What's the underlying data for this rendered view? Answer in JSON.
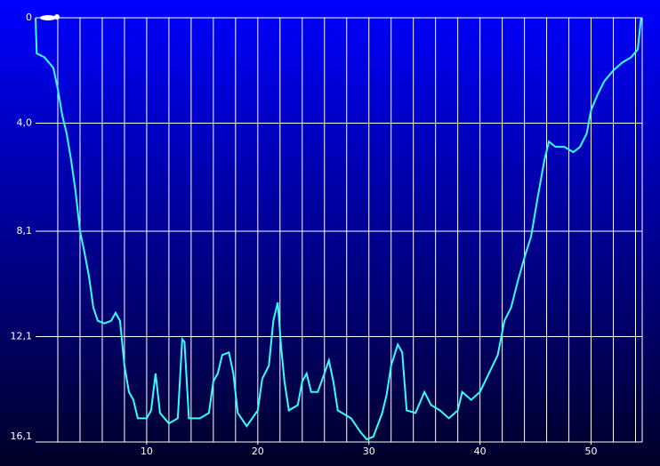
{
  "chart_data": {
    "type": "line",
    "x": [
      0,
      0.1,
      0.8,
      1.6,
      2.0,
      2.4,
      2.8,
      3.2,
      3.6,
      4.0,
      4.4,
      4.8,
      5.2,
      5.6,
      6.2,
      6.8,
      7.2,
      7.6,
      8.0,
      8.4,
      8.8,
      9.2,
      10.0,
      10.4,
      10.8,
      11.2,
      12.0,
      12.8,
      13.2,
      13.4,
      13.8,
      14.8,
      15.6,
      16.0,
      16.4,
      16.8,
      17.4,
      17.8,
      18.2,
      19.0,
      20.0,
      20.4,
      21.0,
      21.4,
      21.8,
      22.1,
      22.4,
      22.8,
      23.6,
      24.0,
      24.4,
      24.8,
      25.4,
      26.0,
      26.4,
      26.8,
      27.2,
      28.4,
      29.2,
      29.8,
      30.4,
      31.2,
      31.6,
      32.0,
      32.6,
      33.0,
      33.4,
      34.2,
      35.0,
      35.6,
      36.4,
      37.2,
      38.0,
      38.4,
      39.2,
      40.0,
      40.8,
      41.6,
      42.2,
      42.8,
      43.4,
      44.0,
      44.6,
      45.2,
      45.8,
      46.2,
      46.8,
      47.6,
      48.4,
      49.0,
      49.6,
      50.0,
      50.6,
      51.2,
      52.0,
      52.8,
      53.6,
      54.2,
      54.5
    ],
    "series": [
      {
        "color": "#33ffff",
        "values": [
          0,
          1.35,
          1.5,
          1.9,
          2.7,
          3.7,
          4.4,
          5.4,
          6.6,
          8.1,
          8.9,
          9.8,
          11.0,
          11.5,
          11.6,
          11.5,
          11.2,
          11.5,
          13.2,
          14.2,
          14.5,
          15.2,
          15.2,
          14.9,
          13.5,
          15.0,
          15.4,
          15.2,
          12.2,
          12.3,
          15.2,
          15.2,
          15.0,
          13.8,
          13.5,
          12.8,
          12.7,
          13.5,
          15.0,
          15.5,
          14.9,
          13.7,
          13.2,
          11.5,
          10.8,
          12.5,
          13.8,
          14.9,
          14.7,
          13.8,
          13.5,
          14.2,
          14.2,
          13.5,
          13.0,
          13.8,
          14.9,
          15.2,
          15.7,
          16.0,
          15.9,
          15.0,
          14.3,
          13.2,
          12.4,
          12.7,
          14.9,
          15.0,
          14.2,
          14.7,
          14.9,
          15.2,
          14.9,
          14.2,
          14.5,
          14.2,
          13.5,
          12.8,
          11.5,
          11.0,
          10.0,
          9.1,
          8.3,
          6.8,
          5.4,
          4.7,
          4.9,
          4.9,
          5.1,
          4.9,
          4.4,
          3.5,
          2.9,
          2.4,
          2.0,
          1.7,
          1.5,
          1.2,
          0
        ]
      }
    ],
    "xlim": [
      0,
      54.6
    ],
    "xticks": [
      10,
      20,
      30,
      40,
      50
    ],
    "xgrid": [
      2,
      4,
      6,
      8,
      10,
      12,
      14,
      16,
      18,
      20,
      22,
      24,
      26,
      28,
      30,
      32,
      34,
      36,
      38,
      40,
      42,
      44,
      46,
      48,
      50,
      52,
      54
    ],
    "ylim": [
      0,
      16.1
    ],
    "y_inverted": true,
    "yticks": [
      0,
      {
        "value": 4.0,
        "label": "4,0"
      },
      {
        "value": 8.1,
        "label": "8,1"
      },
      {
        "value": 12.1,
        "label": "12,1"
      },
      {
        "value": 16.1,
        "label": "16,1"
      }
    ],
    "grid": true
  }
}
